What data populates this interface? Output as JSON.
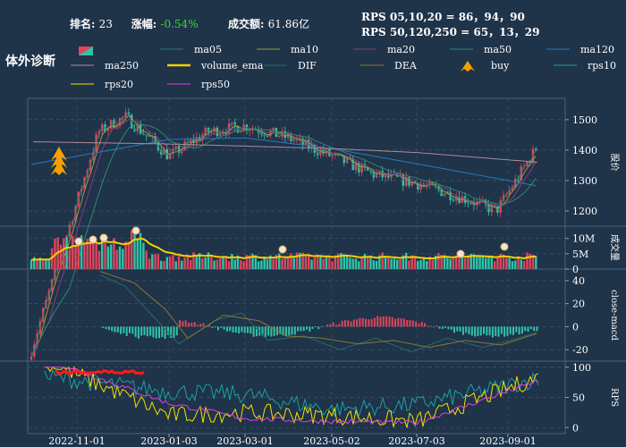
{
  "header": {
    "rank_label": "排名:",
    "rank_value": "23",
    "change_label": "涨幅:",
    "change_value": "-0.54%",
    "turnover_label": "成交额:",
    "turnover_value": "61.86亿",
    "rps_line1": "RPS 05,10,20 = 86，94，90",
    "rps_line2": "RPS 50,120,250 = 65，13，29"
  },
  "brand": "体外诊断",
  "legend": [
    {
      "label": "ma05",
      "color": "#2f7a7a",
      "kind": "line"
    },
    {
      "label": "ma10",
      "color": "#9a9a3a",
      "kind": "line"
    },
    {
      "label": "ma20",
      "color": "#8a3a8a",
      "kind": "line"
    },
    {
      "label": "ma50",
      "color": "#2f8a6a",
      "kind": "line"
    },
    {
      "label": "ma120",
      "color": "#2a7ab8",
      "kind": "line"
    },
    {
      "label": "ma250",
      "color": "#b08a9a",
      "kind": "line"
    },
    {
      "label": "volume_ema",
      "color": "#f5d000",
      "kind": "line"
    },
    {
      "label": "DIF",
      "color": "#2a6a6a",
      "kind": "line"
    },
    {
      "label": "DEA",
      "color": "#8a7a30",
      "kind": "line"
    },
    {
      "label": "buy",
      "color": "#f5a000",
      "kind": "marker"
    },
    {
      "label": "rps10",
      "color": "#1aa0a0",
      "kind": "line"
    },
    {
      "label": "rps20",
      "color": "#f5e000",
      "kind": "line"
    },
    {
      "label": "rps50",
      "color": "#e040e0",
      "kind": "line"
    }
  ],
  "colors": {
    "background": "#1f3349",
    "up": "#e0455a",
    "down": "#2fc4a8",
    "grid": "#3f5670"
  },
  "chart_data": {
    "type": "line",
    "x_tick_labels": [
      "2022-11-01",
      "2023-01-03",
      "2023-03-01",
      "2023-05-02",
      "2023-07-03",
      "2023-09-01"
    ],
    "panels": [
      {
        "name": "price",
        "ylabel": "股价",
        "yticks": [
          1200,
          1300,
          1400,
          1500
        ],
        "ylim": [
          1150,
          1570
        ],
        "ma_levels": [
          {
            "series": "ma120",
            "x": [
              "2022-11-01",
              "2023-01-03",
              "2023-03-01",
              "2023-05-02",
              "2023-07-03",
              "2023-09-01"
            ],
            "values": [
              1380,
              1435,
              1440,
              1405,
              1355,
              1300
            ]
          },
          {
            "series": "ma250",
            "x": [
              "2022-11-01",
              "2023-01-03",
              "2023-03-01",
              "2023-05-02",
              "2023-07-03",
              "2023-09-01"
            ],
            "values": [
              1425,
              1420,
              1413,
              1405,
              1392,
              1368
            ]
          }
        ],
        "price_path": {
          "x": [
            "2022-11-01",
            "2022-11-20",
            "2022-12-10",
            "2023-01-03",
            "2023-02-01",
            "2023-03-01",
            "2023-04-01",
            "2023-05-02",
            "2023-06-01",
            "2023-07-03",
            "2023-08-01",
            "2023-08-20",
            "2023-09-01"
          ],
          "close": [
            1230,
            1460,
            1510,
            1380,
            1460,
            1480,
            1440,
            1380,
            1320,
            1290,
            1240,
            1200,
            1260
          ]
        },
        "buy_markers": 3
      },
      {
        "name": "volume",
        "ylabel": "成交量",
        "yticks": [
          "0",
          "5M",
          "10M"
        ],
        "ylim": [
          0,
          14
        ],
        "unit": "M"
      },
      {
        "name": "macd",
        "ylabel": "close-macd",
        "yticks": [
          -20,
          0,
          20,
          40
        ],
        "ylim": [
          -30,
          50
        ]
      },
      {
        "name": "rps",
        "ylabel": "RPS",
        "yticks": [
          0,
          50,
          100
        ],
        "ylim": [
          -10,
          110
        ],
        "series": [
          {
            "name": "rps10",
            "x": [
              "2022-11-01",
              "2023-01-03",
              "2023-03-01",
              "2023-05-02",
              "2023-07-03",
              "2023-09-01"
            ],
            "values": [
              78,
              60,
              55,
              30,
              38,
              70
            ]
          },
          {
            "name": "rps20",
            "x": [
              "2022-11-01",
              "2023-01-03",
              "2023-03-01",
              "2023-05-02",
              "2023-07-03",
              "2023-09-01"
            ],
            "values": [
              88,
              20,
              25,
              20,
              10,
              65
            ]
          },
          {
            "name": "rps50",
            "x": [
              "2022-11-01",
              "2023-01-03",
              "2023-03-01",
              "2023-05-02",
              "2023-07-03",
              "2023-09-01"
            ],
            "values": [
              95,
              40,
              15,
              10,
              8,
              60
            ]
          }
        ]
      }
    ]
  }
}
